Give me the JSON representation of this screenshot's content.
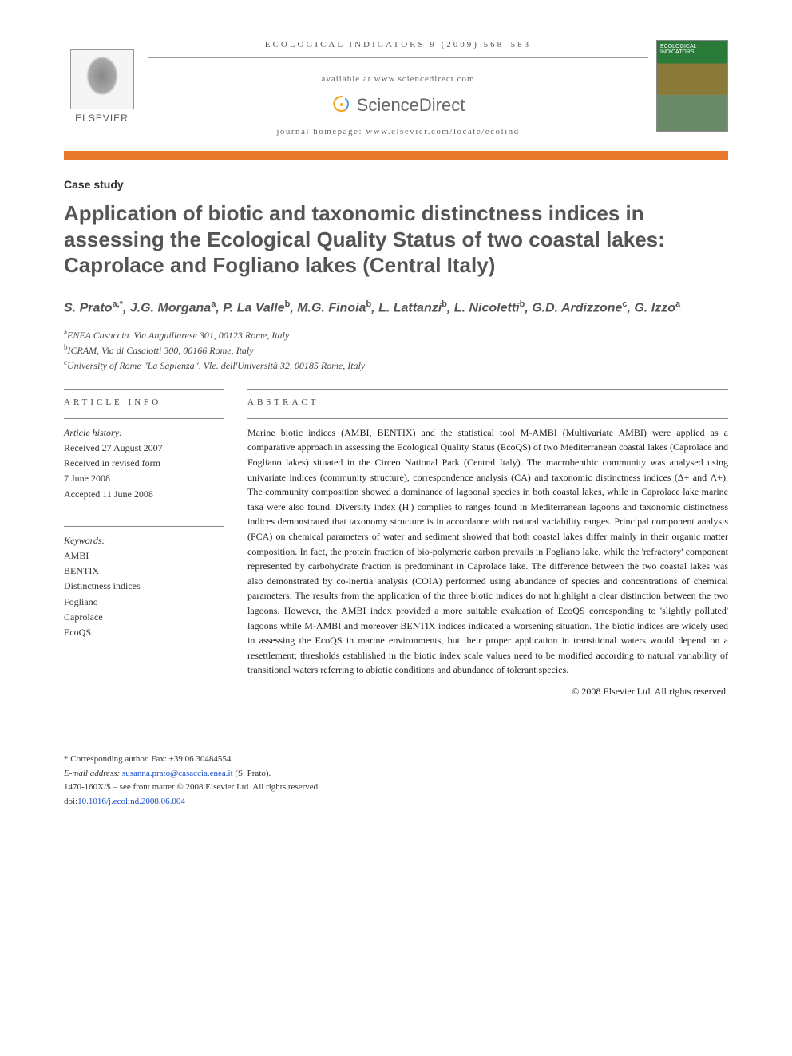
{
  "header": {
    "journal_ref": "ECOLOGICAL INDICATORS 9 (2009) 568–583",
    "availability": "available at www.sciencedirect.com",
    "sd_brand": "ScienceDirect",
    "homepage": "journal homepage: www.elsevier.com/locate/ecolind",
    "publisher_label": "ELSEVIER",
    "cover_title": "ECOLOGICAL INDICATORS"
  },
  "article": {
    "type": "Case study",
    "title": "Application of biotic and taxonomic distinctness indices in assessing the Ecological Quality Status of two coastal lakes: Caprolace and Fogliano lakes (Central Italy)",
    "authors_html": "S. Prato<sup>a,*</sup>, J.G. Morgana<sup>a</sup>, P. La Valle<sup>b</sup>, M.G. Finoia<sup>b</sup>, L. Lattanzi<sup>b</sup>, L. Nicoletti<sup>b</sup>, G.D. Ardizzone<sup>c</sup>, G. Izzo<sup>a</sup>",
    "affiliations": [
      "ENEA Casaccia. Via Anguillarese 301, 00123 Rome, Italy",
      "ICRAM, Via di Casalotti 300, 00166 Rome, Italy",
      "University of Rome \"La Sapienza\", Vle. dell'Università 32, 00185 Rome, Italy"
    ],
    "aff_markers": [
      "a",
      "b",
      "c"
    ]
  },
  "info": {
    "heading": "ARTICLE INFO",
    "history_label": "Article history:",
    "history": [
      "Received 27 August 2007",
      "Received in revised form",
      "7 June 2008",
      "Accepted 11 June 2008"
    ],
    "keywords_label": "Keywords:",
    "keywords": [
      "AMBI",
      "BENTIX",
      "Distinctness indices",
      "Fogliano",
      "Caprolace",
      "EcoQS"
    ]
  },
  "abstract": {
    "heading": "ABSTRACT",
    "text": "Marine biotic indices (AMBI, BENTIX) and the statistical tool M-AMBI (Multivariate AMBI) were applied as a comparative approach in assessing the Ecological Quality Status (EcoQS) of two Mediterranean coastal lakes (Caprolace and Fogliano lakes) situated in the Circeo National Park (Central Italy). The macrobenthic community was analysed using univariate indices (community structure), correspondence analysis (CA) and taxonomic distinctness indices (Δ+ and Λ+). The community composition showed a dominance of lagoonal species in both coastal lakes, while in Caprolace lake marine taxa were also found. Diversity index (H') complies to ranges found in Mediterranean lagoons and taxonomic distinctness indices demonstrated that taxonomy structure is in accordance with natural variability ranges. Principal component analysis (PCA) on chemical parameters of water and sediment showed that both coastal lakes differ mainly in their organic matter composition. In fact, the protein fraction of bio-polymeric carbon prevails in Fogliano lake, while the 'refractory' component represented by carbohydrate fraction is predominant in Caprolace lake. The difference between the two coastal lakes was also demonstrated by co-inertia analysis (COIA) performed using abundance of species and concentrations of chemical parameters. The results from the application of the three biotic indices do not highlight a clear distinction between the two lagoons. However, the AMBI index provided a more suitable evaluation of EcoQS corresponding to 'slightly polluted' lagoons while M-AMBI and moreover BENTIX indices indicated a worsening situation. The biotic indices are widely used in assessing the EcoQS in marine environments, but their proper application in transitional waters would depend on a resettlement; thresholds established in the biotic index scale values need to be modified according to natural variability of transitional waters referring to abiotic conditions and abundance of tolerant species.",
    "copyright": "© 2008 Elsevier Ltd. All rights reserved."
  },
  "footer": {
    "corresponding": "* Corresponding author. Fax: +39 06 30484554.",
    "email_label": "E-mail address:",
    "email": "susanna.prato@casaccia.enea.it",
    "email_author": "(S. Prato).",
    "issn_line": "1470-160X/$ – see front matter © 2008 Elsevier Ltd. All rights reserved.",
    "doi_label": "doi:",
    "doi": "10.1016/j.ecolind.2008.06.004"
  },
  "colors": {
    "accent_bar": "#e8792c",
    "link": "#1a4fc9",
    "title_gray": "#555555"
  }
}
